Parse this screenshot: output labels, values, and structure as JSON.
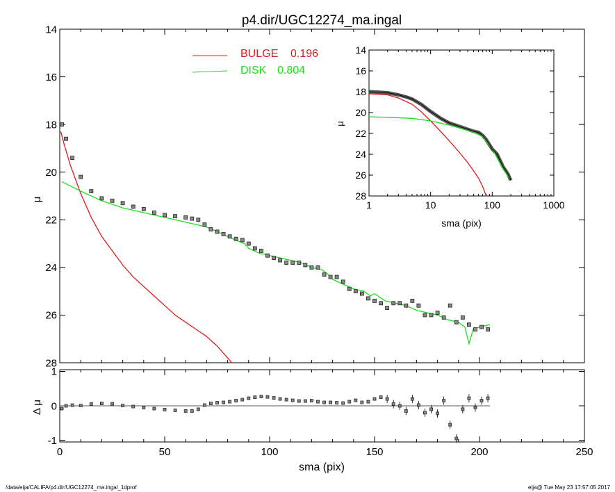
{
  "title": "p4.dir/UGC12274_ma.ingal",
  "footer": {
    "left": "/data/eija/CALIFA/p4.dir/UGC12274_ma.ingal_1dprof",
    "right": "eija@  Tue May 23 17:57:05 2017"
  },
  "legend": {
    "bulge_label": "BULGE",
    "bulge_value": "0.196",
    "disk_label": "DISK",
    "disk_value": "0.804"
  },
  "colors": {
    "bulge": "#dd1a1a",
    "disk": "#19e019",
    "data": "#000000"
  },
  "chart_data": [
    {
      "type": "scatter",
      "panel": "main",
      "xlabel": "",
      "ylabel": "μ",
      "xlim": [
        0,
        250
      ],
      "ylim": [
        28,
        14
      ],
      "yticks": [
        14,
        16,
        18,
        20,
        22,
        24,
        26,
        28
      ],
      "xticks": [
        0,
        50,
        100,
        150,
        200,
        250
      ],
      "series": [
        {
          "name": "BULGE",
          "kind": "line",
          "x": [
            0.5,
            2,
            5,
            10,
            15,
            20,
            25,
            30,
            35,
            40,
            45,
            50,
            55,
            60,
            65,
            70,
            75,
            80,
            82
          ],
          "values": [
            18.3,
            18.8,
            19.7,
            20.9,
            21.9,
            22.7,
            23.3,
            23.9,
            24.4,
            24.8,
            25.2,
            25.6,
            26.0,
            26.3,
            26.6,
            26.9,
            27.3,
            27.8,
            28.0
          ]
        },
        {
          "name": "DISK",
          "kind": "line",
          "x": [
            1,
            10,
            20,
            30,
            40,
            50,
            60,
            70,
            75,
            80,
            85,
            88,
            90,
            95,
            100,
            105,
            110,
            115,
            120,
            125,
            128,
            130,
            135,
            140,
            145,
            148,
            150,
            155,
            160,
            165,
            170,
            175,
            180,
            185,
            190,
            193,
            195,
            197,
            200,
            205
          ],
          "values": [
            20.4,
            20.8,
            21.2,
            21.5,
            21.7,
            21.9,
            22.1,
            22.3,
            22.5,
            22.7,
            22.9,
            23.0,
            23.2,
            23.4,
            23.5,
            23.6,
            23.7,
            23.8,
            24.0,
            24.1,
            24.3,
            24.5,
            24.7,
            24.9,
            25.0,
            25.2,
            25.1,
            25.4,
            25.5,
            25.6,
            25.8,
            25.9,
            26.0,
            26.2,
            26.3,
            26.5,
            27.2,
            26.6,
            26.5,
            26.4
          ]
        },
        {
          "name": "data",
          "kind": "points",
          "x": [
            1,
            3,
            6,
            10,
            15,
            20,
            25,
            30,
            35,
            40,
            45,
            50,
            55,
            60,
            63,
            66,
            69,
            72,
            75,
            78,
            81,
            84,
            87,
            90,
            93,
            96,
            99,
            102,
            105,
            108,
            111,
            114,
            117,
            120,
            123,
            126,
            129,
            132,
            135,
            138,
            141,
            144,
            147,
            150,
            153,
            156,
            159,
            162,
            165,
            168,
            171,
            174,
            177,
            180,
            183,
            186,
            189,
            192,
            195,
            198,
            201,
            204
          ],
          "values": [
            18.0,
            18.6,
            19.4,
            20.2,
            20.8,
            21.1,
            21.2,
            21.3,
            21.45,
            21.55,
            21.7,
            21.8,
            21.85,
            21.9,
            21.95,
            22.0,
            22.2,
            22.4,
            22.5,
            22.6,
            22.7,
            22.8,
            22.85,
            23.0,
            23.2,
            23.3,
            23.5,
            23.6,
            23.7,
            23.8,
            23.8,
            23.8,
            23.9,
            24.0,
            24.0,
            24.3,
            24.4,
            24.4,
            24.6,
            24.9,
            25.0,
            25.1,
            25.3,
            25.4,
            25.5,
            25.7,
            25.5,
            25.5,
            25.6,
            25.4,
            25.6,
            26.0,
            26.0,
            25.9,
            26.1,
            25.6,
            26.3,
            26.1,
            26.4,
            26.6,
            26.5,
            26.6
          ]
        }
      ]
    },
    {
      "type": "scatter",
      "panel": "residual",
      "xlabel": "sma (pix)",
      "ylabel": "Δ μ",
      "xlim": [
        0,
        250
      ],
      "ylim": [
        -1.05,
        1.05
      ],
      "yticks": [
        1,
        0,
        -1
      ],
      "xticks": [
        0,
        50,
        100,
        150,
        200,
        250
      ],
      "series": [
        {
          "name": "residual",
          "x": [
            1,
            3,
            6,
            10,
            15,
            20,
            25,
            30,
            35,
            40,
            45,
            50,
            55,
            60,
            63,
            66,
            69,
            72,
            75,
            78,
            81,
            84,
            87,
            90,
            93,
            96,
            99,
            102,
            105,
            108,
            111,
            114,
            117,
            120,
            123,
            126,
            129,
            132,
            135,
            138,
            141,
            144,
            147,
            150,
            153,
            156,
            159,
            162,
            165,
            168,
            171,
            174,
            177,
            180,
            183,
            186,
            189,
            192,
            195,
            198,
            201,
            204
          ],
          "values": [
            -0.08,
            0.0,
            0.02,
            0.01,
            0.05,
            0.07,
            0.06,
            0.01,
            -0.02,
            -0.05,
            -0.08,
            -0.11,
            -0.13,
            -0.15,
            -0.15,
            -0.1,
            0.02,
            0.07,
            0.09,
            0.1,
            0.12,
            0.15,
            0.18,
            0.22,
            0.25,
            0.27,
            0.26,
            0.23,
            0.2,
            0.18,
            0.16,
            0.14,
            0.14,
            0.15,
            0.12,
            0.1,
            0.1,
            0.09,
            0.08,
            0.12,
            0.16,
            0.1,
            0.12,
            0.2,
            0.25,
            0.2,
            0.05,
            0.0,
            -0.15,
            0.2,
            0.02,
            -0.2,
            -0.1,
            -0.22,
            0.15,
            -0.55,
            -0.95,
            -0.1,
            0.22,
            -0.05,
            0.15,
            0.22
          ]
        }
      ]
    },
    {
      "type": "scatter",
      "panel": "inset",
      "xlabel": "sma (pix)",
      "ylabel": "μ",
      "xscale": "log",
      "xlim": [
        1,
        1000
      ],
      "ylim": [
        28,
        14
      ],
      "yticks": [
        14,
        16,
        18,
        20,
        22,
        24,
        26,
        28
      ],
      "xticks": [
        1,
        10,
        100,
        1000
      ],
      "series": [
        {
          "name": "BULGE",
          "x": [
            1,
            2,
            3,
            5,
            7,
            10,
            15,
            20,
            30,
            40,
            50,
            60,
            70,
            80
          ],
          "values": [
            18.2,
            18.3,
            18.6,
            19.2,
            19.9,
            20.8,
            21.9,
            22.7,
            23.9,
            24.8,
            25.6,
            26.3,
            27.1,
            28.0
          ]
        },
        {
          "name": "DISK",
          "x": [
            1,
            2,
            5,
            10,
            20,
            30,
            50,
            70,
            100,
            150,
            200
          ],
          "values": [
            20.4,
            20.45,
            20.55,
            20.8,
            21.2,
            21.5,
            21.9,
            22.3,
            23.5,
            25.4,
            26.5
          ]
        },
        {
          "name": "data",
          "x": [
            1,
            1.5,
            2,
            3,
            4,
            5,
            7,
            10,
            15,
            20,
            30,
            40,
            50,
            60,
            70,
            80,
            100,
            120,
            150,
            180,
            200
          ],
          "values": [
            18.0,
            18.05,
            18.1,
            18.3,
            18.5,
            18.7,
            19.2,
            19.9,
            20.6,
            21.0,
            21.35,
            21.6,
            21.8,
            21.9,
            22.2,
            22.6,
            23.5,
            24.0,
            25.2,
            25.9,
            26.5
          ]
        }
      ]
    }
  ]
}
